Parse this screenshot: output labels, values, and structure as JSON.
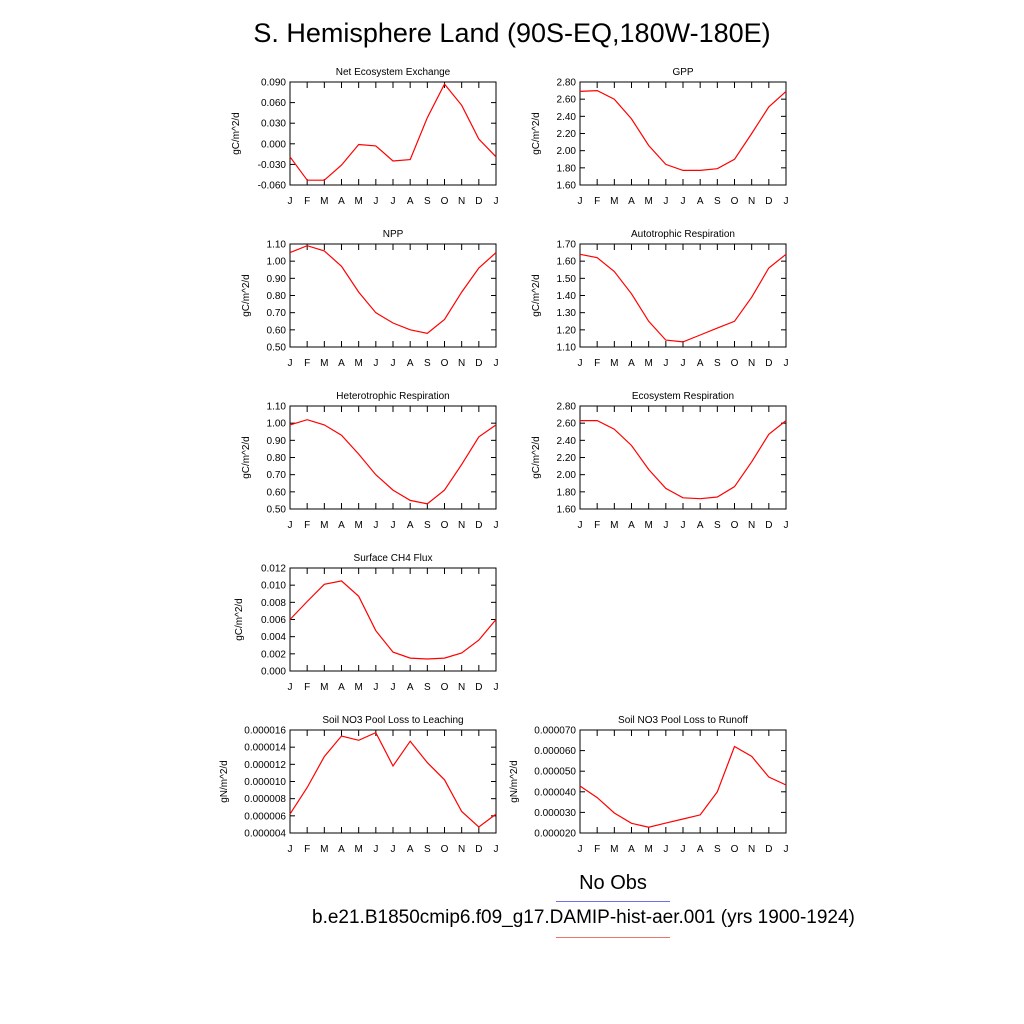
{
  "title": "S. Hemisphere Land (90S-EQ,180W-180E)",
  "legend": {
    "obs_label": "No Obs",
    "obs_color": "#6f6fe8",
    "model_label": "b.e21.B1850cmip6.f09_g17.DAMIP-hist-aer.001 (yrs 1900-1924)",
    "model_color": "#f07070"
  },
  "series_color": "#ff0000",
  "chart_data": [
    {
      "type": "line",
      "title": "Net Ecosystem Exchange",
      "ylabel": "gC/m^2/d",
      "xlabel": "",
      "categories": [
        "J",
        "F",
        "M",
        "A",
        "M",
        "J",
        "J",
        "A",
        "S",
        "O",
        "N",
        "D",
        "J"
      ],
      "yticks": [
        "0.090",
        "0.060",
        "0.030",
        "0.000",
        "-0.030",
        "-0.060"
      ],
      "ylim": [
        -0.06,
        0.09
      ],
      "values": [
        -0.019,
        -0.053,
        -0.053,
        -0.031,
        -0.001,
        -0.003,
        -0.025,
        -0.023,
        0.038,
        0.087,
        0.056,
        0.007,
        -0.019
      ]
    },
    {
      "type": "line",
      "title": "GPP",
      "ylabel": "gC/m^2/d",
      "xlabel": "",
      "categories": [
        "J",
        "F",
        "M",
        "A",
        "M",
        "J",
        "J",
        "A",
        "S",
        "O",
        "N",
        "D",
        "J"
      ],
      "yticks": [
        "2.80",
        "2.60",
        "2.40",
        "2.20",
        "2.00",
        "1.80",
        "1.60"
      ],
      "ylim": [
        1.6,
        2.8
      ],
      "values": [
        2.69,
        2.7,
        2.6,
        2.37,
        2.06,
        1.84,
        1.77,
        1.77,
        1.79,
        1.9,
        2.2,
        2.51,
        2.69
      ]
    },
    {
      "type": "line",
      "title": "NPP",
      "ylabel": "gC/m^2/d",
      "xlabel": "",
      "categories": [
        "J",
        "F",
        "M",
        "A",
        "M",
        "J",
        "J",
        "A",
        "S",
        "O",
        "N",
        "D",
        "J"
      ],
      "yticks": [
        "1.10",
        "1.00",
        "0.90",
        "0.80",
        "0.70",
        "0.60",
        "0.50"
      ],
      "ylim": [
        0.5,
        1.1
      ],
      "values": [
        1.05,
        1.09,
        1.06,
        0.97,
        0.82,
        0.7,
        0.64,
        0.6,
        0.58,
        0.66,
        0.82,
        0.96,
        1.05
      ]
    },
    {
      "type": "line",
      "title": "Autotrophic Respiration",
      "ylabel": "gC/m^2/d",
      "xlabel": "",
      "categories": [
        "J",
        "F",
        "M",
        "A",
        "M",
        "J",
        "J",
        "A",
        "S",
        "O",
        "N",
        "D",
        "J"
      ],
      "yticks": [
        "1.70",
        "1.60",
        "1.50",
        "1.40",
        "1.30",
        "1.20",
        "1.10"
      ],
      "ylim": [
        1.1,
        1.7
      ],
      "values": [
        1.64,
        1.62,
        1.54,
        1.41,
        1.25,
        1.14,
        1.13,
        1.17,
        1.21,
        1.25,
        1.39,
        1.56,
        1.64
      ]
    },
    {
      "type": "line",
      "title": "Heterotrophic Respiration",
      "ylabel": "gC/m^2/d",
      "xlabel": "",
      "categories": [
        "J",
        "F",
        "M",
        "A",
        "M",
        "J",
        "J",
        "A",
        "S",
        "O",
        "N",
        "D",
        "J"
      ],
      "yticks": [
        "1.10",
        "1.00",
        "0.90",
        "0.80",
        "0.70",
        "0.60",
        "0.50"
      ],
      "ylim": [
        0.5,
        1.1
      ],
      "values": [
        0.99,
        1.02,
        0.99,
        0.93,
        0.82,
        0.7,
        0.61,
        0.55,
        0.53,
        0.61,
        0.76,
        0.92,
        0.99
      ]
    },
    {
      "type": "line",
      "title": "Ecosystem Respiration",
      "ylabel": "gC/m^2/d",
      "xlabel": "",
      "categories": [
        "J",
        "F",
        "M",
        "A",
        "M",
        "J",
        "J",
        "A",
        "S",
        "O",
        "N",
        "D",
        "J"
      ],
      "yticks": [
        "2.80",
        "2.60",
        "2.40",
        "2.20",
        "2.00",
        "1.80",
        "1.60"
      ],
      "ylim": [
        1.6,
        2.8
      ],
      "values": [
        2.63,
        2.63,
        2.53,
        2.34,
        2.06,
        1.84,
        1.73,
        1.72,
        1.74,
        1.86,
        2.15,
        2.47,
        2.63
      ]
    },
    {
      "type": "line",
      "title": "Surface CH4 Flux",
      "ylabel": "gC/m^2/d",
      "xlabel": "",
      "categories": [
        "J",
        "F",
        "M",
        "A",
        "M",
        "J",
        "J",
        "A",
        "S",
        "O",
        "N",
        "D",
        "J"
      ],
      "yticks": [
        "0.012",
        "0.010",
        "0.008",
        "0.006",
        "0.004",
        "0.002",
        "0.000"
      ],
      "ylim": [
        0.0,
        0.012
      ],
      "values": [
        0.006,
        0.0081,
        0.0101,
        0.0105,
        0.0087,
        0.0047,
        0.0022,
        0.0015,
        0.0014,
        0.0015,
        0.0021,
        0.0036,
        0.006
      ]
    },
    {
      "type": "line",
      "title": "Soil NO3 Pool Loss to Leaching",
      "ylabel": "gN/m^2/d",
      "xlabel": "",
      "categories": [
        "J",
        "F",
        "M",
        "A",
        "M",
        "J",
        "J",
        "A",
        "S",
        "O",
        "N",
        "D",
        "J"
      ],
      "yticks": [
        "0.000016",
        "0.000014",
        "0.000012",
        "0.000010",
        "0.000008",
        "0.000006",
        "0.000004"
      ],
      "ylim": [
        4e-06,
        1.6e-05
      ],
      "values": [
        6.2e-06,
        9.3e-06,
        1.29e-05,
        1.53e-05,
        1.48e-05,
        1.57e-05,
        1.18e-05,
        1.47e-05,
        1.22e-05,
        1.02e-05,
        6.5e-06,
        4.7e-06,
        6.2e-06
      ]
    },
    {
      "type": "line",
      "title": "Soil NO3 Pool Loss to Runoff",
      "ylabel": "gN/m^2/d",
      "xlabel": "",
      "categories": [
        "J",
        "F",
        "M",
        "A",
        "M",
        "J",
        "J",
        "A",
        "S",
        "O",
        "N",
        "D",
        "J"
      ],
      "yticks": [
        "0.000070",
        "0.000060",
        "0.000050",
        "0.000040",
        "0.000030",
        "0.000020"
      ],
      "ylim": [
        2e-05,
        7e-05
      ],
      "values": [
        4.28e-05,
        3.72e-05,
        2.97e-05,
        2.47e-05,
        2.28e-05,
        2.48e-05,
        2.68e-05,
        2.88e-05,
        4e-05,
        6.2e-05,
        5.72e-05,
        4.72e-05,
        4.33e-05
      ]
    }
  ]
}
